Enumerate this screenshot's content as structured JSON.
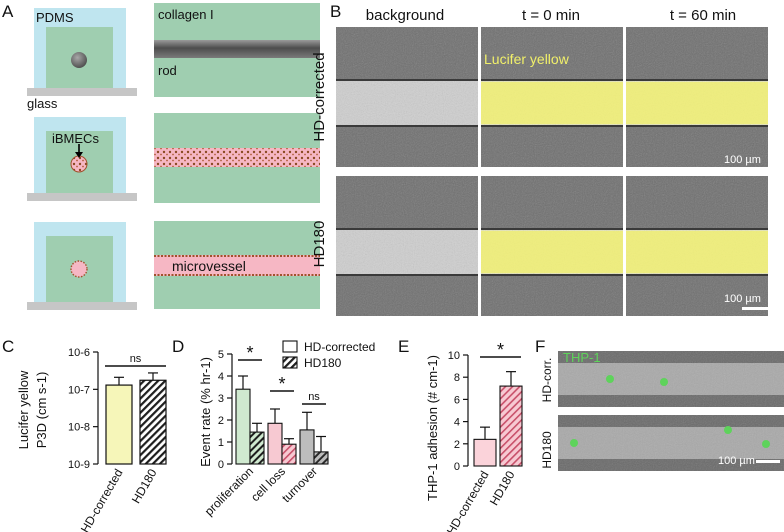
{
  "panel_labels": {
    "A": "A",
    "B": "B",
    "C": "C",
    "D": "D",
    "E": "E",
    "F": "F"
  },
  "panel_a": {
    "pdms": "PDMS",
    "glass": "glass",
    "collagen": "collagen I",
    "rod": "rod",
    "ibmecs": "iBMECs",
    "microvessel": "microvessel"
  },
  "panel_b": {
    "col_headers": [
      "background",
      "t = 0 min",
      "t = 60 min"
    ],
    "row_labels": [
      "HD-corrected",
      "HD180"
    ],
    "dye_label": "Lucifer yellow",
    "scale_bar": "100 µm"
  },
  "panel_f": {
    "cell_label": "THP-1",
    "row_labels": [
      "HD-corr.",
      "HD180"
    ],
    "scale_bar": "100 µm"
  },
  "colors": {
    "pdms": "#bfe5ef",
    "collagen": "#9fceb0",
    "glass": "#c6c6c6",
    "vessel_pink": "#f6b7c4",
    "lucifer": "#f1f06a",
    "thp1": "#5ed35b",
    "hd_corrected_fill": "#f6f6b9",
    "hd180_hatch": "#2a2a2a"
  },
  "chart_data": [
    {
      "id": "C",
      "type": "bar",
      "ylabel": "Lucifer yellow P3D (cm s-1)",
      "ylabel_line1": "Lucifer yellow",
      "ylabel_line2": "P3D (cm s-1)",
      "yscale": "log",
      "ylim": [
        1e-09,
        1e-06
      ],
      "ytick_labels": [
        "10-6",
        "10-7",
        "10-8",
        "10-9"
      ],
      "categories": [
        "HD-corrected",
        "HD180"
      ],
      "values": [
        1.3e-07,
        1.75e-07
      ],
      "errors": [
        8e-08,
        1e-07
      ],
      "significance": [
        {
          "pair": [
            0,
            1
          ],
          "label": "ns"
        }
      ]
    },
    {
      "id": "D",
      "type": "bar",
      "ylabel": "Event rate (% hr-1)",
      "ylim": [
        0,
        5
      ],
      "ytick_labels": [
        "0",
        "1",
        "2",
        "3",
        "4",
        "5"
      ],
      "categories": [
        "proliferation",
        "cell loss",
        "turnover"
      ],
      "series": [
        {
          "name": "HD-corrected",
          "values": [
            3.4,
            1.85,
            1.55
          ],
          "errors": [
            0.6,
            0.65,
            0.8
          ]
        },
        {
          "name": "HD180",
          "values": [
            1.45,
            0.9,
            0.55
          ],
          "errors": [
            0.4,
            0.25,
            0.7
          ]
        }
      ],
      "significance": [
        "*",
        "*",
        "ns"
      ],
      "legend": "top-right"
    },
    {
      "id": "E",
      "type": "bar",
      "ylabel": "THP-1 adhesion (# cm-1)",
      "ylim": [
        0,
        10
      ],
      "ytick_labels": [
        "0",
        "2",
        "4",
        "6",
        "8",
        "10"
      ],
      "categories": [
        "HD-corrected",
        "HD180"
      ],
      "values": [
        2.4,
        7.2
      ],
      "errors": [
        1.1,
        1.3
      ],
      "significance": [
        {
          "pair": [
            0,
            1
          ],
          "label": "*"
        }
      ]
    }
  ]
}
